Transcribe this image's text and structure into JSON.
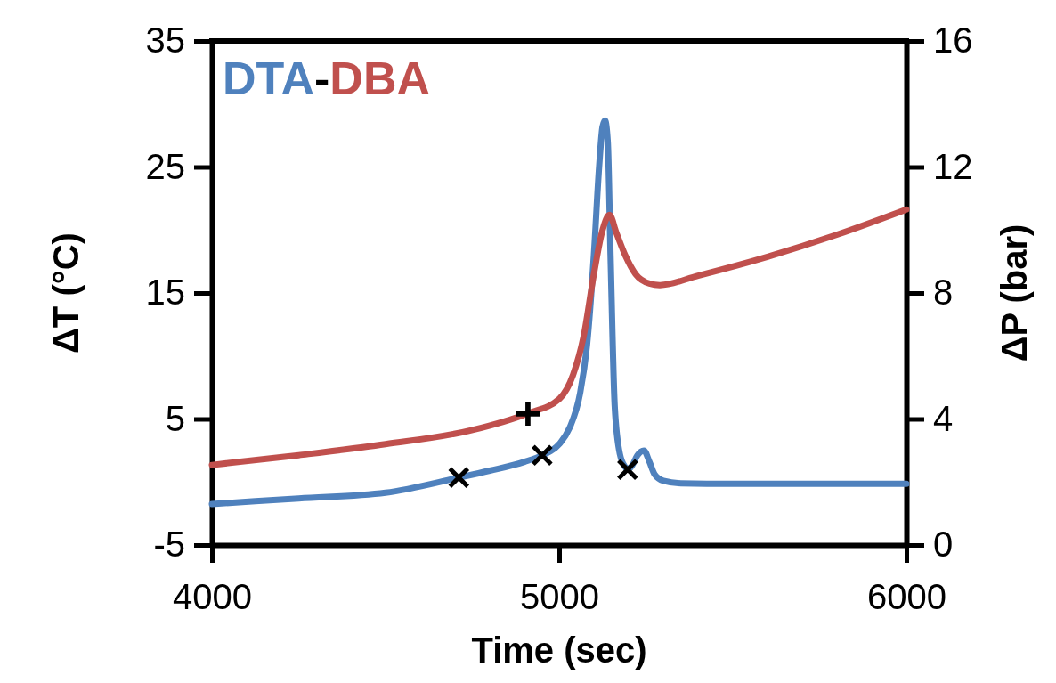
{
  "chart_data": {
    "type": "line",
    "xlabel": "Time (sec)",
    "ylabel": "ΔT (°C)",
    "y2label": "ΔP (bar)",
    "xlim": [
      4000,
      6000
    ],
    "xticks": [
      4000,
      5000,
      6000
    ],
    "ylim": [
      -5,
      35
    ],
    "yticks": [
      -5,
      5,
      15,
      25,
      35
    ],
    "y2lim": [
      0,
      16
    ],
    "y2ticks": [
      0,
      4,
      8,
      12,
      16
    ],
    "legend": "top left",
    "grid": false,
    "annotations": [
      "-",
      {
        "text": "+",
        "x": 4910,
        "y": 5.46
      }
    ],
    "series": [
      {
        "name": "DTA",
        "color": "#4f81bd",
        "x": [
          4000,
          4250,
          4500,
          4711,
          4800,
          4900,
          4951,
          5000,
          5030,
          5060,
          5080,
          5100,
          5115,
          5125,
          5132,
          5140,
          5148,
          5160,
          5175,
          5190,
          5197,
          5210,
          5225,
          5244,
          5260,
          5275,
          5300,
          5350,
          5500,
          6000
        ],
        "values": [
          -1.75,
          -1.3,
          -0.85,
          0.35,
          0.9,
          1.6,
          2.12,
          3.0,
          4.3,
          7.0,
          10.8,
          18,
          25,
          28.2,
          28.7,
          27,
          18,
          6,
          2.2,
          1.2,
          0.99,
          1.3,
          2.1,
          2.5,
          1.6,
          0.6,
          0.1,
          -0.1,
          -0.15,
          -0.15
        ]
      },
      {
        "name": "DBA",
        "color": "#c0504d",
        "axis": "y2",
        "x": [
          4000,
          4250,
          4500,
          4750,
          4910,
          5000,
          5040,
          5070,
          5100,
          5125,
          5145,
          5165,
          5190,
          5220,
          5260,
          5290,
          5400,
          5600,
          5800,
          6000
        ],
        "values": [
          2.54,
          2.85,
          3.2,
          3.65,
          4.18,
          4.63,
          5.4,
          6.6,
          8.6,
          10.0,
          10.48,
          9.9,
          9.2,
          8.6,
          8.3,
          8.25,
          8.55,
          9.15,
          9.85,
          10.65
        ]
      },
      {
        "type": "scatter",
        "color": "#000000",
        "marker": "cross",
        "x": [
          4711,
          4951,
          5197
        ],
        "values": [
          0.35,
          2.12,
          0.99
        ]
      }
    ]
  }
}
